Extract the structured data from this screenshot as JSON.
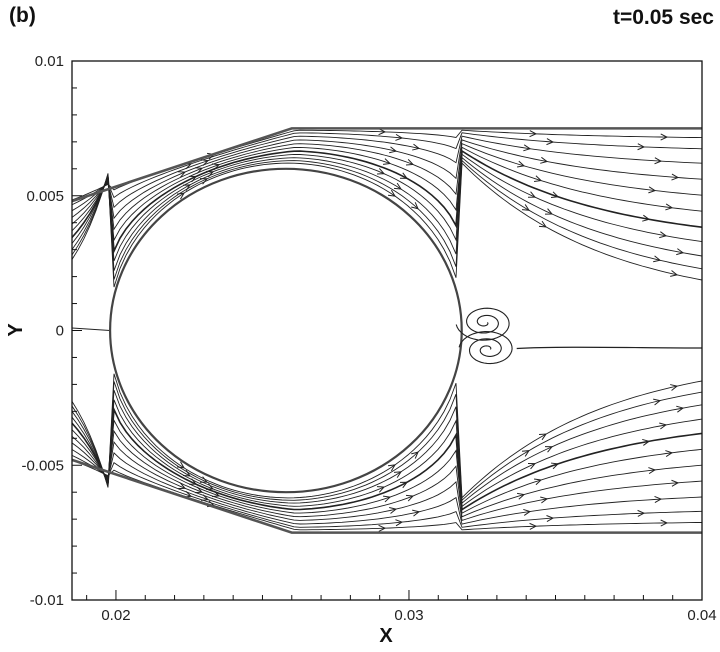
{
  "panel_label": "(b)",
  "time_label": "t=0.05 sec",
  "chart_data": {
    "type": "streamline",
    "xlabel": "X",
    "ylabel": "Y",
    "xlim": [
      0.0185,
      0.04
    ],
    "ylim": [
      -0.01,
      0.01
    ],
    "x_ticks": [
      0.02,
      0.03,
      0.04
    ],
    "x_tick_labels": [
      "0.02",
      "0.03",
      "0.04"
    ],
    "y_ticks": [
      -0.01,
      -0.005,
      0,
      0.005,
      0.01
    ],
    "y_tick_labels": [
      "-0.01",
      "-0.005",
      "0",
      "0.005",
      "0.01"
    ],
    "grid": false,
    "cylinder": {
      "center": [
        0.0258,
        0.0
      ],
      "radius": 0.006
    },
    "channel_wall_upper": [
      [
        0.0185,
        0.0048
      ],
      [
        0.026,
        0.0075
      ],
      [
        0.04,
        0.0075
      ]
    ],
    "channel_wall_lower": [
      [
        0.0185,
        -0.0048
      ],
      [
        0.026,
        -0.0075
      ],
      [
        0.04,
        -0.0075
      ]
    ],
    "wake_vortices": [
      {
        "center": [
          0.0326,
          0.0003
        ],
        "rotation": "clockwise"
      },
      {
        "center": [
          0.0327,
          -0.0007
        ],
        "rotation": "counterclockwise"
      }
    ],
    "colors": {
      "lines": "#222222",
      "walls": "#555555"
    }
  }
}
